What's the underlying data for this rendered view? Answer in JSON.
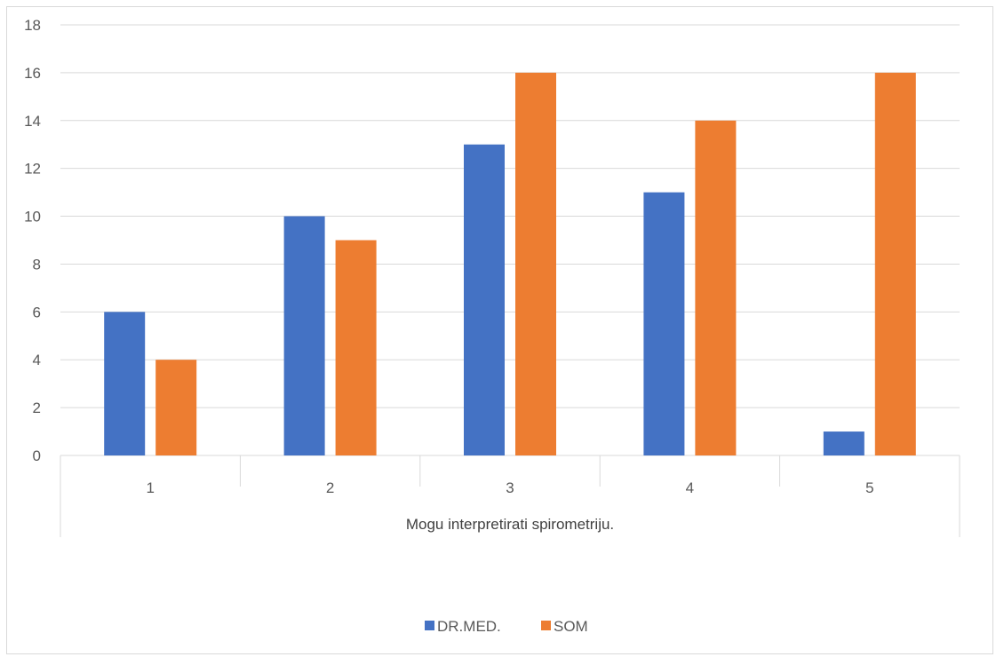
{
  "chart_data": {
    "type": "bar",
    "categories": [
      "1",
      "2",
      "3",
      "4",
      "5"
    ],
    "series": [
      {
        "name": "DR.MED.",
        "values": [
          6,
          10,
          13,
          11,
          1
        ],
        "color": "#4472C4"
      },
      {
        "name": "SOM",
        "values": [
          4,
          9,
          16,
          14,
          16
        ],
        "color": "#ED7D31"
      }
    ],
    "title": "",
    "xlabel": "Mogu interpretirati spirometriju.",
    "ylabel": "",
    "ylim": [
      0,
      18
    ],
    "yticks": [
      0,
      2,
      4,
      6,
      8,
      10,
      12,
      14,
      16,
      18
    ],
    "grid": true,
    "legend_position": "bottom"
  },
  "colors": {
    "gridline": "#d9d9d9",
    "axis_text": "#595959"
  }
}
